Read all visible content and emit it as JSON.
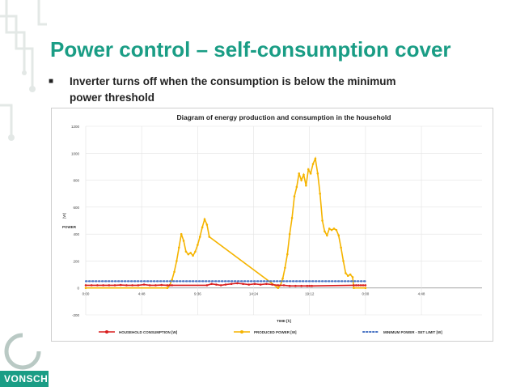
{
  "slide": {
    "title": "Power control – self-consumption cover",
    "bullet_line1": "Inverter turns off when the consumption is below the minimum",
    "bullet_line2": "power threshold",
    "bullet_icon": "square-bullet-icon"
  },
  "logo": {
    "text": "VONSCH"
  },
  "colors": {
    "accent": "#1a9d85",
    "household": "#d91e1e",
    "produced": "#f5b400",
    "minimum": "#4a74c4"
  },
  "chart_data": {
    "type": "line",
    "title": "Diagram of energy production and consumption in the household",
    "xlabel": "TIME [h]",
    "ylabel": "[W]",
    "ylabel2": "POWER",
    "xlim": [
      0,
      34
    ],
    "ylim": [
      -200,
      1200
    ],
    "x_ticks": [
      0,
      4.8,
      9.6,
      14.4,
      19.2,
      24,
      28.8
    ],
    "x_tick_labels": [
      "0:00",
      "4:48",
      "9:36",
      "14:24",
      "19:12",
      "0:00",
      "4:48"
    ],
    "y_ticks": [
      -200,
      0,
      200,
      400,
      600,
      800,
      1000,
      1200
    ],
    "y_tick_labels": [
      "-200",
      "0",
      "200",
      "400",
      "600",
      "800",
      "1000",
      "1200"
    ],
    "grid": true,
    "legend_position": "bottom",
    "series": [
      {
        "name": "HOUSEHOLD CONSUMPTION [W]",
        "color": "#d91e1e",
        "x": [
          0,
          0.5,
          1,
          1.5,
          2,
          2.5,
          3,
          3.5,
          4,
          4.5,
          5,
          5.5,
          6,
          6.5,
          7,
          7.2,
          7.4,
          10.4,
          10.8,
          11.2,
          11.6,
          12,
          12.5,
          13,
          13.5,
          14,
          14.5,
          15,
          15.5,
          16,
          16.5,
          17,
          17.5,
          18,
          18.5,
          19,
          19.2,
          19.4,
          23,
          23.2,
          23.4,
          23.6,
          23.8,
          24
        ],
        "values": [
          20,
          20,
          20,
          20,
          20,
          20,
          22,
          20,
          20,
          20,
          25,
          20,
          20,
          22,
          20,
          20,
          20,
          20,
          30,
          25,
          20,
          25,
          30,
          35,
          30,
          25,
          30,
          25,
          30,
          25,
          20,
          20,
          15,
          15,
          15,
          15,
          15,
          15,
          20,
          20,
          20,
          20,
          20,
          20
        ]
      },
      {
        "name": "PRODUCED POWER [W]",
        "color": "#f5b400",
        "x": [
          0,
          7.0,
          7.2,
          7.4,
          7.6,
          7.8,
          8.0,
          8.2,
          8.4,
          8.6,
          8.8,
          9.0,
          9.2,
          9.4,
          9.6,
          9.8,
          10.0,
          10.2,
          10.4,
          10.6,
          16.5,
          16.7,
          16.9,
          17.1,
          17.3,
          17.5,
          17.7,
          17.9,
          18.1,
          18.3,
          18.5,
          18.7,
          18.9,
          19.1,
          19.3,
          19.5,
          19.7,
          19.9,
          20.1,
          20.3,
          20.5,
          20.7,
          20.9,
          21.1,
          21.3,
          21.5,
          21.7,
          21.9,
          22.1,
          22.3,
          22.5,
          22.7,
          22.9,
          23.0,
          24
        ],
        "values": [
          0,
          0,
          20,
          60,
          120,
          200,
          300,
          400,
          350,
          270,
          250,
          260,
          240,
          270,
          320,
          380,
          450,
          510,
          470,
          380,
          0,
          20,
          70,
          150,
          250,
          400,
          520,
          680,
          750,
          850,
          800,
          840,
          760,
          880,
          850,
          920,
          960,
          850,
          700,
          500,
          420,
          390,
          440,
          430,
          440,
          430,
          390,
          300,
          200,
          110,
          90,
          100,
          80,
          0,
          0
        ]
      },
      {
        "name": "MINIMUM POWER - SET LIMIT [W]",
        "color": "#4a74c4",
        "x": [
          0,
          24
        ],
        "values": [
          50,
          50
        ]
      }
    ]
  }
}
